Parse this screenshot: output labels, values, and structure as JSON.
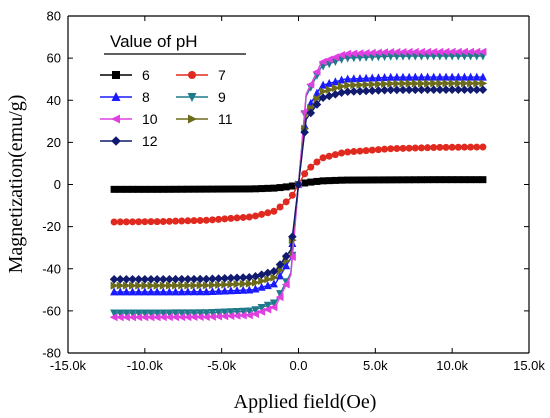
{
  "chart_data": {
    "type": "line",
    "title": "",
    "xlabel": "Applied field(Oe)",
    "ylabel": "Magnetization(emu/g)",
    "xlim": [
      -15000,
      15000
    ],
    "ylim": [
      -80,
      80
    ],
    "xticks": [
      -15000,
      -10000,
      -5000,
      0,
      5000,
      10000,
      15000
    ],
    "xtick_labels": [
      "-15.0k",
      "-10.0k",
      "-5.0k",
      "0.0",
      "5.0k",
      "10.0k",
      "15.0k"
    ],
    "yticks": [
      -80,
      -60,
      -40,
      -20,
      0,
      20,
      40,
      60,
      80
    ],
    "ytick_labels": [
      "-80",
      "-60",
      "-40",
      "-20",
      "0",
      "20",
      "40",
      "60",
      "80"
    ],
    "legend": {
      "title": "Value of pH",
      "placement": "top-left",
      "columns": 2
    },
    "grid": false,
    "series": [
      {
        "name": "6",
        "color": "#000000",
        "marker": "square",
        "ms": 2.3,
        "hk": 1500,
        "x": [
          -12000,
          -9000,
          -6000,
          -3000,
          -1500,
          -500,
          0,
          500,
          1500,
          3000,
          6000,
          9000,
          12000
        ],
        "y": [
          -2.3,
          -2.3,
          -2.2,
          -2.1,
          -1.7,
          -0.9,
          0,
          0.9,
          1.7,
          2.1,
          2.2,
          2.3,
          2.3
        ]
      },
      {
        "name": "7",
        "color": "#e02a1f",
        "marker": "circle",
        "ms": 17.8,
        "hk": 1400,
        "x": [
          -12000,
          -9000,
          -6000,
          -3000,
          -1500,
          -500,
          0,
          500,
          1500,
          3000,
          6000,
          9000,
          12000
        ],
        "y": [
          -17.8,
          -17.6,
          -17,
          -15.3,
          -12.5,
          -6.4,
          0,
          6.4,
          12.5,
          15.3,
          17,
          17.6,
          17.8
        ]
      },
      {
        "name": "8",
        "color": "#1a1aff",
        "marker": "triangle-up",
        "ms": 51,
        "hk": 500,
        "x": [
          -12000,
          -9000,
          -6000,
          -3000,
          -1500,
          -500,
          0,
          500,
          1500,
          3000,
          6000,
          9000,
          12000
        ],
        "y": [
          -51,
          -51,
          -50.9,
          -50,
          -47,
          -35,
          0,
          35,
          47,
          50,
          50.9,
          51,
          51
        ]
      },
      {
        "name": "9",
        "color": "#1f7a8c",
        "marker": "triangle-down",
        "ms": 61,
        "hk": 500,
        "x": [
          -12000,
          -9000,
          -6000,
          -3000,
          -1500,
          -500,
          0,
          500,
          1500,
          3000,
          6000,
          9000,
          12000
        ],
        "y": [
          -61,
          -61,
          -60.9,
          -60,
          -56,
          -42,
          0,
          42,
          56,
          60,
          60.9,
          61,
          61
        ]
      },
      {
        "name": "10",
        "color": "#e040e0",
        "marker": "triangle-left",
        "ms": 63,
        "hk": 500,
        "x": [
          -12000,
          -9000,
          -6000,
          -3000,
          -1500,
          -500,
          0,
          500,
          1500,
          3000,
          6000,
          9000,
          12000
        ],
        "y": [
          -63,
          -63,
          -62.9,
          -62,
          -58,
          -43,
          0,
          43,
          58,
          62,
          62.9,
          63,
          63
        ]
      },
      {
        "name": "11",
        "color": "#6b6b1a",
        "marker": "triangle-right",
        "ms": 48,
        "hk": 500,
        "x": [
          -12000,
          -9000,
          -6000,
          -3000,
          -1500,
          -500,
          0,
          500,
          1500,
          3000,
          6000,
          9000,
          12000
        ],
        "y": [
          -48,
          -48,
          -47.9,
          -47,
          -44,
          -33,
          0,
          33,
          44,
          47,
          47.9,
          48,
          48
        ]
      },
      {
        "name": "12",
        "color": "#101a6e",
        "marker": "diamond",
        "ms": 45,
        "hk": 500,
        "x": [
          -12000,
          -9000,
          -6000,
          -3000,
          -1500,
          -500,
          0,
          500,
          1500,
          3000,
          6000,
          9000,
          12000
        ],
        "y": [
          -45,
          -45,
          -44.9,
          -44,
          -41,
          -31,
          0,
          31,
          41,
          44,
          44.9,
          45,
          45
        ]
      }
    ]
  }
}
